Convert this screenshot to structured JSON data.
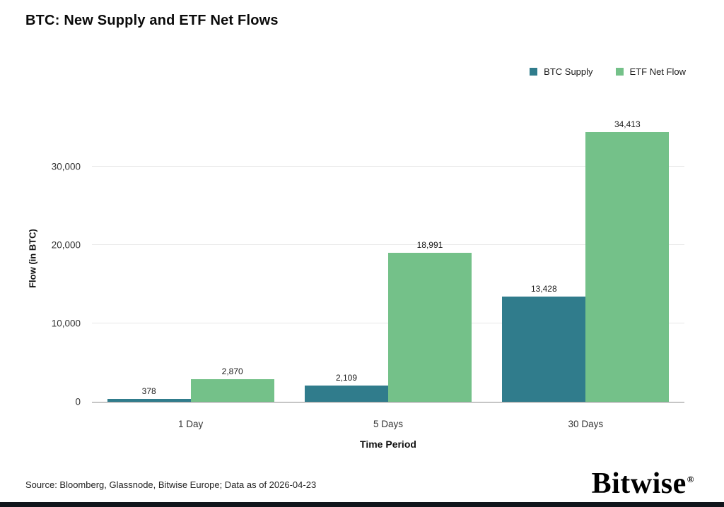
{
  "chart_data": {
    "type": "bar",
    "title": "BTC: New Supply and ETF Net Flows",
    "categories": [
      "1 Day",
      "5 Days",
      "30 Days"
    ],
    "series": [
      {
        "name": "BTC Supply",
        "color": "#307C8C",
        "values": [
          378,
          2109,
          13428
        ]
      },
      {
        "name": "ETF Net Flow",
        "color": "#74C189",
        "values": [
          2870,
          18991,
          34413
        ]
      }
    ],
    "value_labels": [
      [
        "378",
        "2,870"
      ],
      [
        "2,109",
        "18,991"
      ],
      [
        "13,428",
        "34,413"
      ]
    ],
    "xlabel": "Time Period",
    "ylabel": "Flow (in BTC)",
    "yticks": [
      0,
      10000,
      20000,
      30000
    ],
    "ytick_labels": [
      "0",
      "10,000",
      "20,000",
      "30,000"
    ],
    "ymax": 36700,
    "grid": "horizontal",
    "legend_position": "top-right"
  },
  "footer": {
    "source": "Source: Bloomberg, Glassnode, Bitwise Europe; Data as of 2026-04-23",
    "brand": "Bitwise",
    "brand_reg": "®"
  }
}
